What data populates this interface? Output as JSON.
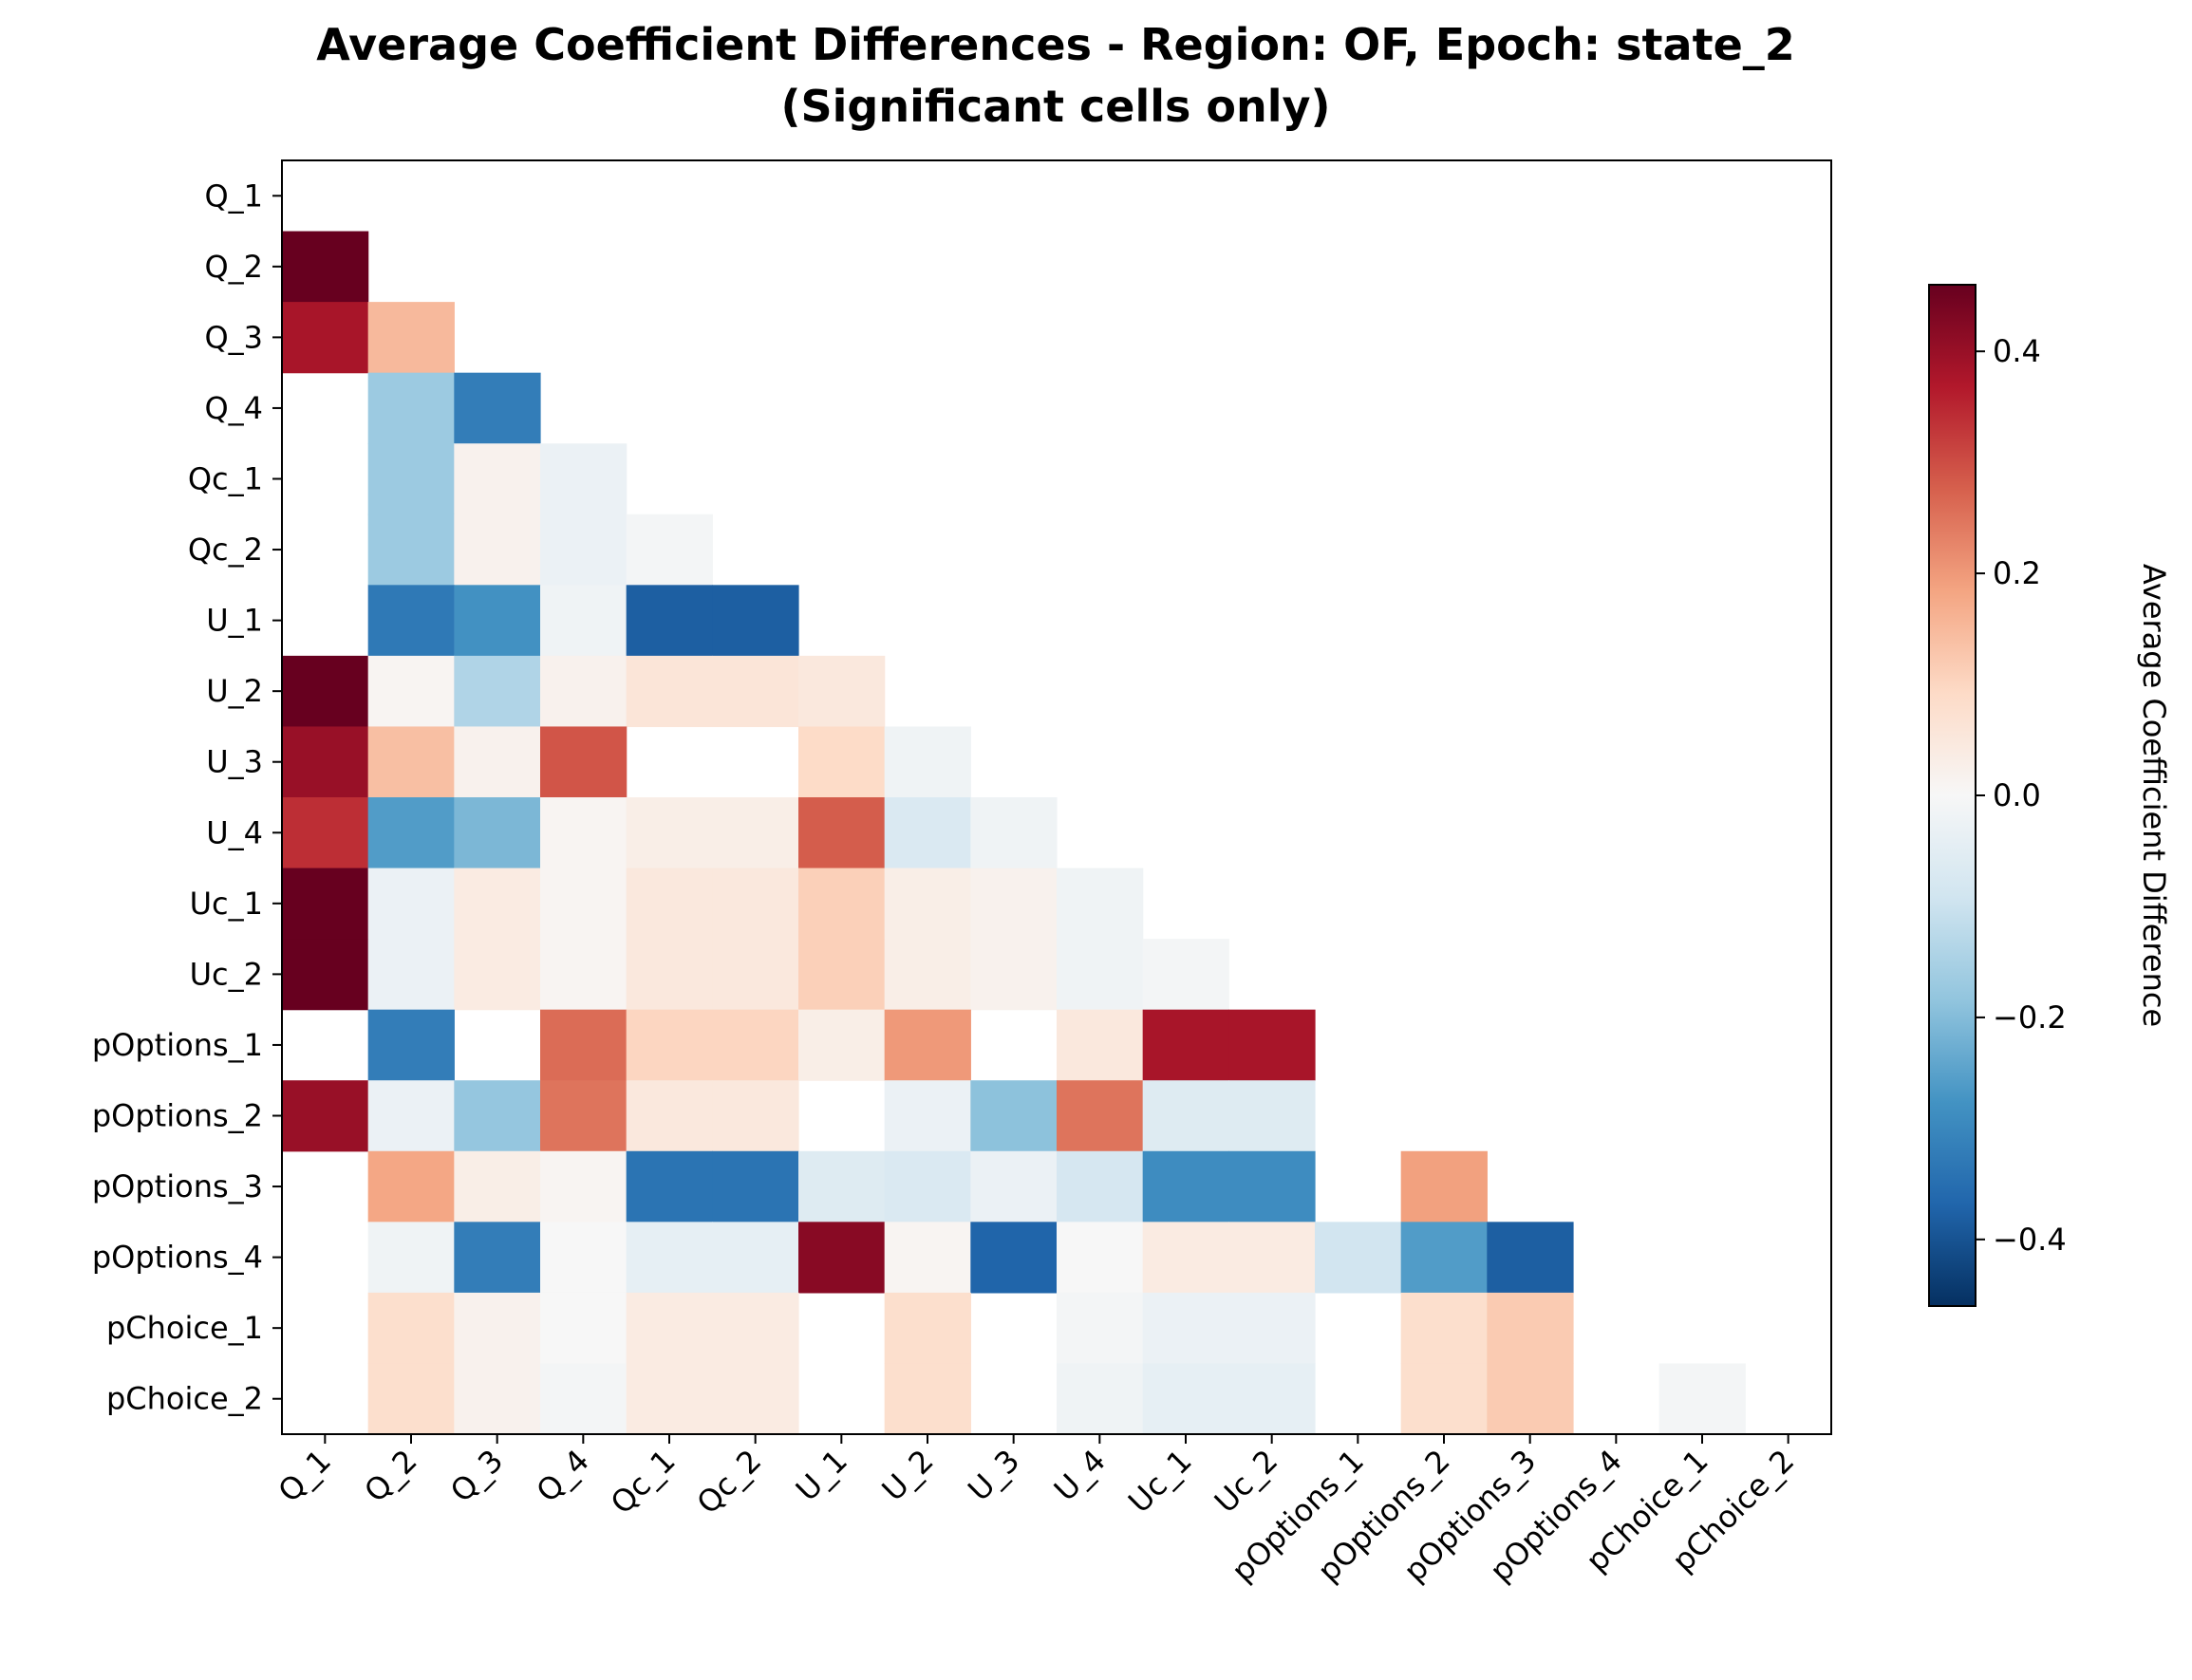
{
  "chart_data": {
    "type": "heatmap",
    "title": "Average Coefficient Differences - Region: OF, Epoch: state_2",
    "subtitle": "(Significant cells only)",
    "xlabel": "",
    "ylabel": "",
    "row_labels": [
      "Q_1",
      "Q_2",
      "Q_3",
      "Q_4",
      "Qc_1",
      "Qc_2",
      "U_1",
      "U_2",
      "U_3",
      "U_4",
      "Uc_1",
      "Uc_2",
      "pOptions_1",
      "pOptions_2",
      "pOptions_3",
      "pOptions_4",
      "pChoice_1",
      "pChoice_2"
    ],
    "col_labels": [
      "Q_1",
      "Q_2",
      "Q_3",
      "Q_4",
      "Qc_1",
      "Qc_2",
      "U_1",
      "U_2",
      "U_3",
      "U_4",
      "Uc_1",
      "Uc_2",
      "pOptions_1",
      "pOptions_2",
      "pOptions_3",
      "pOptions_4",
      "pChoice_1",
      "pChoice_2"
    ],
    "values": [
      [
        null,
        null,
        null,
        null,
        null,
        null,
        null,
        null,
        null,
        null,
        null,
        null,
        null,
        null,
        null,
        null,
        null,
        null
      ],
      [
        0.46,
        null,
        null,
        null,
        null,
        null,
        null,
        null,
        null,
        null,
        null,
        null,
        null,
        null,
        null,
        null,
        null,
        null
      ],
      [
        0.38,
        0.15,
        null,
        null,
        null,
        null,
        null,
        null,
        null,
        null,
        null,
        null,
        null,
        null,
        null,
        null,
        null,
        null
      ],
      [
        null,
        -0.17,
        -0.32,
        null,
        null,
        null,
        null,
        null,
        null,
        null,
        null,
        null,
        null,
        null,
        null,
        null,
        null,
        null
      ],
      [
        null,
        -0.17,
        0.02,
        -0.03,
        null,
        null,
        null,
        null,
        null,
        null,
        null,
        null,
        null,
        null,
        null,
        null,
        null,
        null
      ],
      [
        null,
        -0.17,
        0.02,
        -0.03,
        -0.01,
        null,
        null,
        null,
        null,
        null,
        null,
        null,
        null,
        null,
        null,
        null,
        null,
        null
      ],
      [
        null,
        -0.33,
        -0.28,
        -0.02,
        -0.38,
        -0.38,
        null,
        null,
        null,
        null,
        null,
        null,
        null,
        null,
        null,
        null,
        null,
        null
      ],
      [
        0.46,
        0.01,
        -0.14,
        0.02,
        0.06,
        0.06,
        0.05,
        null,
        null,
        null,
        null,
        null,
        null,
        null,
        null,
        null,
        null,
        null
      ],
      [
        0.4,
        0.14,
        0.02,
        0.29,
        null,
        null,
        0.09,
        -0.02,
        null,
        null,
        null,
        null,
        null,
        null,
        null,
        null,
        null,
        null
      ],
      [
        0.34,
        -0.26,
        -0.21,
        0.01,
        0.03,
        0.03,
        0.28,
        -0.07,
        -0.02,
        null,
        null,
        null,
        null,
        null,
        null,
        null,
        null,
        null
      ],
      [
        0.46,
        -0.03,
        0.04,
        0.01,
        0.05,
        0.05,
        0.11,
        0.03,
        0.02,
        -0.02,
        null,
        null,
        null,
        null,
        null,
        null,
        null,
        null
      ],
      [
        0.46,
        -0.03,
        0.04,
        0.01,
        0.05,
        0.05,
        0.11,
        0.03,
        0.02,
        -0.02,
        -0.01,
        null,
        null,
        null,
        null,
        null,
        null,
        null
      ],
      [
        null,
        -0.32,
        null,
        0.26,
        0.1,
        0.1,
        0.03,
        0.2,
        null,
        0.05,
        0.38,
        0.38,
        null,
        null,
        null,
        null,
        null,
        null
      ],
      [
        0.4,
        -0.03,
        -0.18,
        0.25,
        0.05,
        0.05,
        null,
        -0.03,
        -0.19,
        0.25,
        -0.06,
        -0.06,
        null,
        null,
        null,
        null,
        null,
        null
      ],
      [
        null,
        0.18,
        0.03,
        0.01,
        -0.34,
        -0.34,
        -0.06,
        -0.07,
        -0.03,
        -0.08,
        -0.29,
        -0.29,
        null,
        0.19,
        null,
        null,
        null,
        null
      ],
      [
        null,
        -0.02,
        -0.32,
        0.0,
        -0.04,
        -0.04,
        0.42,
        0.01,
        -0.37,
        0.0,
        0.04,
        0.04,
        -0.09,
        -0.26,
        -0.38,
        null,
        null,
        null
      ],
      [
        null,
        0.08,
        0.02,
        0.0,
        0.04,
        0.04,
        null,
        0.08,
        null,
        -0.01,
        -0.03,
        -0.03,
        null,
        0.08,
        0.12,
        null,
        null,
        null
      ],
      [
        null,
        0.08,
        0.02,
        -0.01,
        0.04,
        0.04,
        null,
        0.08,
        null,
        -0.02,
        -0.04,
        -0.04,
        null,
        0.08,
        0.12,
        null,
        -0.01,
        null
      ]
    ],
    "colormap": "RdBu_r",
    "vmin": -0.46,
    "vmax": 0.46,
    "colorbar": {
      "label": "Average Coefficient Difference",
      "ticks": [
        0.4,
        0.2,
        0.0,
        -0.2,
        -0.4
      ],
      "tick_labels": [
        "0.4",
        "0.2",
        "0.0",
        "−0.2",
        "−0.4"
      ]
    },
    "grid": false,
    "masked_cells_color": "#ffffff"
  }
}
